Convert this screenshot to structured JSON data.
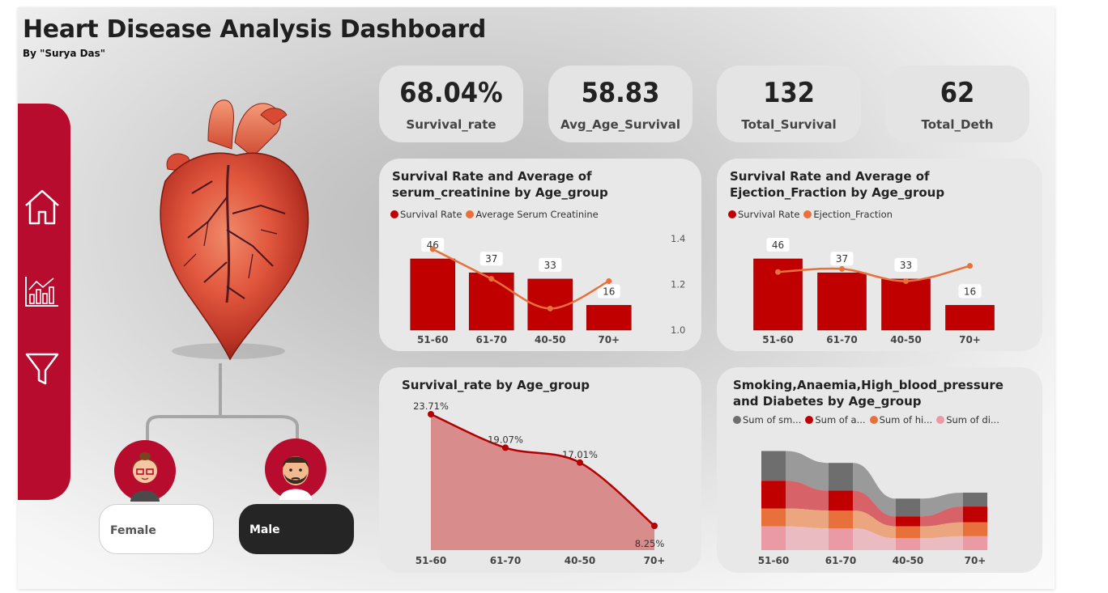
{
  "header": {
    "title": "Heart Disease Analysis Dashboard",
    "subtitle": "By \"Surya Das\""
  },
  "sidebar": {
    "items": [
      {
        "name": "home-icon"
      },
      {
        "name": "bar-chart-icon"
      },
      {
        "name": "filter-icon"
      }
    ]
  },
  "kpis": [
    {
      "value": "68.04%",
      "label": "Survival_rate"
    },
    {
      "value": "58.83",
      "label": "Avg_Age_Survival"
    },
    {
      "value": "132",
      "label": "Total_Survival"
    },
    {
      "value": "62",
      "label": "Total_Deth"
    }
  ],
  "gender": {
    "female_label": "Female",
    "male_label": "Male"
  },
  "colors": {
    "brand_red": "#b70c2e",
    "bar_red": "#c00000",
    "line_orange": "#e8703a",
    "area_red": "#d98c8c",
    "card_bg": "#e8e8e8"
  },
  "chart_data": [
    {
      "type": "bar",
      "title": "Survival Rate and Average of serum_creatinine by Age_group",
      "legend": [
        "Survival Rate",
        "Average Serum Creatinine"
      ],
      "categories": [
        "51-60",
        "61-70",
        "40-50",
        "70+"
      ],
      "series": [
        {
          "name": "Survival Rate",
          "type": "bar",
          "values": [
            46,
            37,
            33,
            16
          ],
          "labels": [
            "46",
            "37",
            "33",
            "16"
          ]
        },
        {
          "name": "Average Serum Creatinine",
          "type": "line",
          "axis": "right",
          "values": [
            1.34,
            1.21,
            1.08,
            1.2
          ]
        }
      ],
      "y2_ticks": [
        "1.4",
        "1.2",
        "1.0"
      ],
      "y2lim": [
        1.0,
        1.4
      ]
    },
    {
      "type": "bar",
      "title": "Survival Rate and Average of Ejection_Fraction by Age_group",
      "legend": [
        "Survival Rate",
        "Ejection_Fraction"
      ],
      "categories": [
        "51-60",
        "61-70",
        "40-50",
        "70+"
      ],
      "series": [
        {
          "name": "Survival Rate",
          "type": "bar",
          "values": [
            46,
            37,
            33,
            16
          ],
          "labels": [
            "46",
            "37",
            "33",
            "16"
          ]
        },
        {
          "name": "Ejection_Fraction",
          "type": "line",
          "axis": "right",
          "values": [
            0.48,
            0.49,
            0.45,
            0.5
          ]
        }
      ]
    },
    {
      "type": "area",
      "title": "Survival_rate by Age_group",
      "categories": [
        "51-60",
        "61-70",
        "40-50",
        "70+"
      ],
      "values": [
        23.71,
        19.07,
        17.01,
        8.25
      ],
      "labels": [
        "23.71%",
        "19.07%",
        "17.01%",
        "8.25%"
      ]
    },
    {
      "type": "ribbon",
      "title": "Smoking,Anaemia,High_blood_pressure and Diabetes by Age_group",
      "legend": [
        "Sum of sm...",
        "Sum of a...",
        "Sum of hi...",
        "Sum of di..."
      ],
      "categories": [
        "51-60",
        "61-70",
        "40-50",
        "70+"
      ],
      "series": [
        {
          "name": "Sum of sm...",
          "values": [
            15,
            14,
            9,
            7
          ]
        },
        {
          "name": "Sum of a...",
          "values": [
            14,
            10,
            5,
            8
          ]
        },
        {
          "name": "Sum of hi...",
          "values": [
            9,
            9,
            6,
            7
          ]
        },
        {
          "name": "Sum of di...",
          "values": [
            12,
            11,
            6,
            7
          ]
        }
      ]
    }
  ]
}
